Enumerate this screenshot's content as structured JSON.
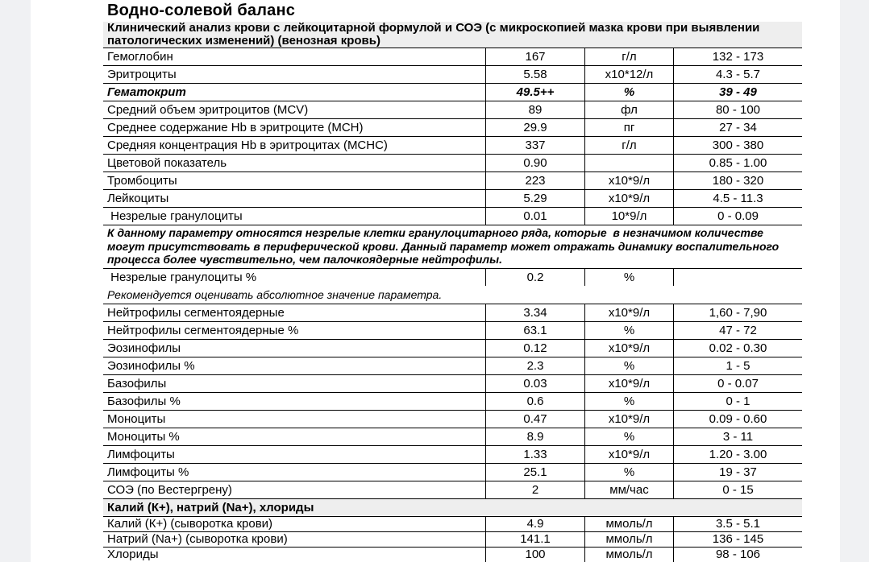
{
  "page": {
    "title": "Водно-солевой баланс"
  },
  "colors": {
    "section_background": "#eeeeee",
    "gutter_background": "#f0f1f3",
    "border": "#000000",
    "text": "#000000"
  },
  "table": {
    "columns": [
      "name",
      "value",
      "unit",
      "range"
    ],
    "items": [
      {
        "type": "section",
        "label": "Клинический анализ крови с лейкоцитарной формулой и СОЭ (с микроскопией мазка крови при выявлении патологических изменений) (венозная кровь)"
      },
      {
        "type": "row",
        "name": "Гемоглобин",
        "value": "167",
        "unit": "г/л",
        "range": "132 - 173"
      },
      {
        "type": "row",
        "name": "Эритроциты",
        "value": "5.58",
        "unit": "х10*12/л",
        "range": "4.3 - 5.7"
      },
      {
        "type": "row",
        "style": "bold-italic",
        "name": "Гематокрит",
        "value": "49.5++",
        "unit": "%",
        "range": "39 - 49"
      },
      {
        "type": "row",
        "name": "Средний объем эритроцитов (MCV)",
        "value": "89",
        "unit": "фл",
        "range": "80 - 100"
      },
      {
        "type": "row",
        "name": "Среднее содержание Hb в эритроците (MCH)",
        "value": "29.9",
        "unit": "пг",
        "range": "27 - 34"
      },
      {
        "type": "row",
        "name": "Средняя концентрация Hb в эритроцитах (MCHC)",
        "value": "337",
        "unit": "г/л",
        "range": "300 - 380"
      },
      {
        "type": "row",
        "name": "Цветовой показатель",
        "value": "0.90",
        "unit": "",
        "range": "0.85 - 1.00"
      },
      {
        "type": "row",
        "name": "Тромбоциты",
        "value": "223",
        "unit": "х10*9/л",
        "range": "180 - 320"
      },
      {
        "type": "row",
        "name": "Лейкоциты",
        "value": "5.29",
        "unit": "х10*9/л",
        "range": "4.5 - 11.3"
      },
      {
        "type": "row",
        "name": " Незрелые гранулоциты",
        "value": "0.01",
        "unit": "10*9/л",
        "range": "0 - 0.09"
      },
      {
        "type": "note",
        "style": "bold-italic",
        "border_top": true,
        "text": "К данному параметру относятся незрелые клетки гранулоцитарного ряда, которые  в незначимом количестве могут присутствовать в периферической крови. Данный параметр может отражать динамику воспалительного процесса более чувствительно, чем палочкоядерные нейтрофилы."
      },
      {
        "type": "row",
        "name": " Незрелые гранулоциты %",
        "value": "0.2",
        "unit": "%",
        "range": ""
      },
      {
        "type": "note",
        "style": "italic",
        "border_top": false,
        "text": "Рекомендуется оценивать абсолютное значение параметра."
      },
      {
        "type": "row",
        "name": "Нейтрофилы сегментоядерные",
        "value": "3.34",
        "unit": "х10*9/л",
        "range": "1,60 - 7,90"
      },
      {
        "type": "row",
        "name": "Нейтрофилы сегментоядерные %",
        "value": "63.1",
        "unit": "%",
        "range": "47 - 72"
      },
      {
        "type": "row",
        "name": "Эозинофилы",
        "value": "0.12",
        "unit": "х10*9/л",
        "range": "0.02 - 0.30"
      },
      {
        "type": "row",
        "name": "Эозинофилы %",
        "value": "2.3",
        "unit": "%",
        "range": "1 - 5"
      },
      {
        "type": "row",
        "name": "Базофилы",
        "value": "0.03",
        "unit": "х10*9/л",
        "range": "0 - 0.07"
      },
      {
        "type": "row",
        "name": "Базофилы %",
        "value": "0.6",
        "unit": "%",
        "range": "0 - 1"
      },
      {
        "type": "row",
        "name": "Моноциты",
        "value": "0.47",
        "unit": "х10*9/л",
        "range": "0.09 - 0.60"
      },
      {
        "type": "row",
        "name": "Моноциты %",
        "value": "8.9",
        "unit": "%",
        "range": "3 - 11"
      },
      {
        "type": "row",
        "name": "Лимфоциты",
        "value": "1.33",
        "unit": "х10*9/л",
        "range": "1.20 - 3.00"
      },
      {
        "type": "row",
        "name": "Лимфоциты %",
        "value": "25.1",
        "unit": "%",
        "range": "19 - 37"
      },
      {
        "type": "row",
        "name": "СОЭ (по Вестергрену)",
        "value": "2",
        "unit": "мм/час",
        "range": "0 - 15"
      },
      {
        "type": "section",
        "single": true,
        "label": "Калий (К+), натрий (Na+), хлориды"
      },
      {
        "type": "row",
        "name": "Калий (К+) (сыворотка крови)",
        "value": "4.9",
        "unit": "ммоль/л",
        "range": "3.5 - 5.1"
      },
      {
        "type": "row",
        "name": "Натрий (Na+) (сыворотка крови)",
        "value": "141.1",
        "unit": "ммоль/л",
        "range": "136 - 145"
      },
      {
        "type": "row",
        "name": "Хлориды",
        "value": "100",
        "unit": "ммоль/л",
        "range": "98 - 106"
      }
    ]
  }
}
